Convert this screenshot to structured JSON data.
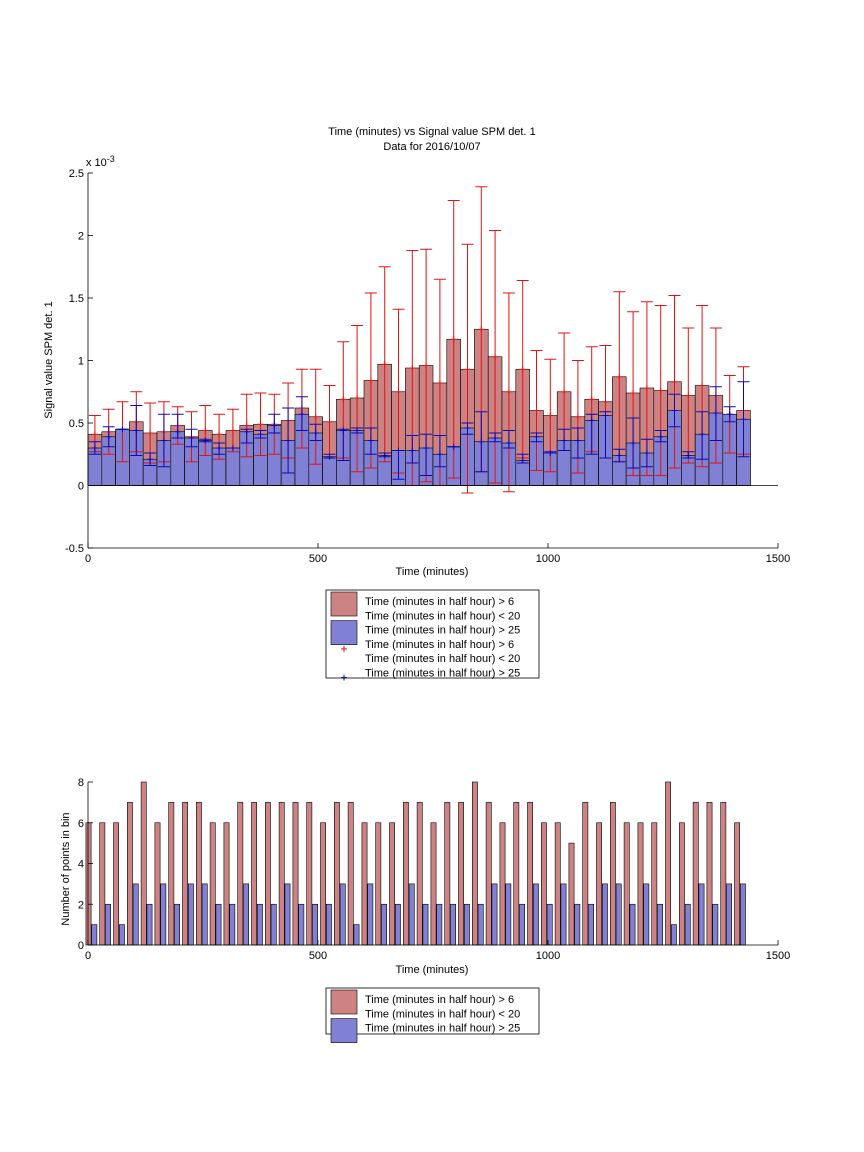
{
  "colors": {
    "red_face": "#cd8383",
    "red_edge": "#b31c1c",
    "blue_face": "#8080d4",
    "blue_edge": "#1c1c99",
    "err_red": "#e01414",
    "err_blue": "#0a0ab4"
  },
  "chart_data": [
    {
      "type": "bar",
      "title": "Time (minutes) vs Signal value SPM det. 1",
      "subtitle": "Data for 2016/10/07",
      "xlabel": "Time (minutes)",
      "ylabel": "Signal value SPM det. 1",
      "y_exponent_label": "x 10",
      "y_exponent_value": "-3",
      "xlim": [
        0,
        1500
      ],
      "ylim": [
        -0.5,
        2.5
      ],
      "y_scale": 0.001,
      "x_ticks": [
        "0",
        "500",
        "1000",
        "1500"
      ],
      "y_ticks": [
        "-0.5",
        "0",
        "0.5",
        "1",
        "1.5",
        "2",
        "2.5"
      ],
      "legend": [
        {
          "label": "Time (minutes in half hour) > 6",
          "kind": "bar",
          "series": "red"
        },
        {
          "label": "Time (minutes in half hour) < 20",
          "kind": "text"
        },
        {
          "label": "Time (minutes in half hour) > 25",
          "kind": "bar",
          "series": "blue"
        },
        {
          "label": "Time (minutes in half hour) > 6",
          "kind": "errorbar",
          "series": "red"
        },
        {
          "label": "Time (minutes in half hour) < 20",
          "kind": "text"
        },
        {
          "label": "Time (minutes in half hour) > 25",
          "kind": "errorbar",
          "series": "blue"
        }
      ],
      "x": [
        15,
        45,
        75,
        105,
        135,
        165,
        195,
        225,
        255,
        285,
        315,
        345,
        375,
        405,
        435,
        465,
        495,
        525,
        555,
        585,
        615,
        645,
        675,
        705,
        735,
        765,
        795,
        825,
        855,
        885,
        915,
        945,
        975,
        1005,
        1035,
        1065,
        1095,
        1125,
        1155,
        1185,
        1215,
        1245,
        1275,
        1305,
        1335,
        1365,
        1395,
        1425
      ],
      "series": [
        {
          "name": "Time (minutes in half hour) > 6",
          "values": [
            0.41,
            0.43,
            0.45,
            0.51,
            0.42,
            0.43,
            0.48,
            0.39,
            0.44,
            0.41,
            0.44,
            0.48,
            0.49,
            0.49,
            0.52,
            0.62,
            0.55,
            0.51,
            0.69,
            0.7,
            0.84,
            0.97,
            0.75,
            0.94,
            0.96,
            0.82,
            1.17,
            0.93,
            1.25,
            1.03,
            0.75,
            0.93,
            0.6,
            0.56,
            0.75,
            0.55,
            0.69,
            0.67,
            0.87,
            0.74,
            0.78,
            0.76,
            0.83,
            0.72,
            0.8,
            0.72,
            0.57,
            0.6
          ],
          "err_low": [
            0.27,
            0.25,
            0.19,
            0.27,
            0.18,
            0.19,
            0.33,
            0.19,
            0.24,
            0.21,
            0.27,
            0.23,
            0.24,
            0.25,
            0.22,
            0.3,
            0.17,
            0.22,
            0.22,
            0.11,
            0.14,
            0.19,
            0.1,
            0.0,
            0.03,
            0.0,
            0.06,
            -0.06,
            0.11,
            0.02,
            -0.05,
            0.22,
            0.12,
            0.11,
            0.28,
            0.1,
            0.27,
            0.22,
            0.19,
            0.08,
            0.08,
            0.08,
            0.14,
            0.18,
            0.15,
            0.18,
            0.26,
            0.25
          ],
          "err_high": [
            0.56,
            0.61,
            0.67,
            0.75,
            0.66,
            0.67,
            0.63,
            0.59,
            0.64,
            0.57,
            0.61,
            0.73,
            0.74,
            0.73,
            0.82,
            0.93,
            0.93,
            0.8,
            1.15,
            1.28,
            1.54,
            1.75,
            1.41,
            1.88,
            1.89,
            1.65,
            2.28,
            1.93,
            2.39,
            2.04,
            1.54,
            1.64,
            1.08,
            1.01,
            1.22,
            1.0,
            1.11,
            1.12,
            1.55,
            1.39,
            1.47,
            1.44,
            1.52,
            1.26,
            1.44,
            1.26,
            0.88,
            0.95
          ]
        },
        {
          "name": "Time (minutes in half hour) > 25",
          "values": [
            0.3,
            0.39,
            0.45,
            0.44,
            0.21,
            0.36,
            0.43,
            0.38,
            0.36,
            0.3,
            0.3,
            0.43,
            0.41,
            0.48,
            0.36,
            0.57,
            0.42,
            0.23,
            0.44,
            0.44,
            0.36,
            0.24,
            0.28,
            0.28,
            0.3,
            0.25,
            0.31,
            0.46,
            0.35,
            0.38,
            0.34,
            0.2,
            0.39,
            0.26,
            0.36,
            0.36,
            0.52,
            0.56,
            0.24,
            0.34,
            0.26,
            0.39,
            0.6,
            0.24,
            0.41,
            0.58,
            0.57,
            0.53
          ],
          "err_low": [
            0.25,
            0.31,
            0.45,
            0.24,
            0.16,
            0.15,
            0.38,
            0.31,
            0.35,
            0.25,
            0.3,
            0.34,
            0.38,
            0.42,
            0.1,
            0.44,
            0.36,
            0.22,
            0.2,
            0.42,
            0.25,
            0.23,
            0.05,
            0.18,
            0.08,
            0.15,
            0.31,
            0.41,
            0.11,
            0.35,
            0.3,
            0.18,
            0.35,
            0.26,
            0.28,
            0.22,
            0.25,
            0.22,
            0.19,
            0.14,
            0.15,
            0.35,
            0.47,
            0.22,
            0.21,
            0.36,
            0.51,
            0.23
          ],
          "err_high": [
            0.35,
            0.47,
            0.45,
            0.64,
            0.26,
            0.57,
            0.57,
            0.45,
            0.37,
            0.34,
            0.3,
            0.45,
            0.44,
            0.57,
            0.62,
            0.71,
            0.49,
            0.25,
            0.45,
            0.46,
            0.46,
            0.26,
            0.28,
            0.4,
            0.41,
            0.4,
            0.31,
            0.5,
            0.59,
            0.42,
            0.44,
            0.25,
            0.42,
            0.27,
            0.45,
            0.46,
            0.57,
            0.59,
            0.29,
            0.54,
            0.37,
            0.44,
            0.73,
            0.27,
            0.59,
            0.79,
            0.63,
            0.83
          ]
        }
      ]
    },
    {
      "type": "bar",
      "xlabel": "Time (minutes)",
      "ylabel": "Number of points in bin",
      "xlim": [
        0,
        1500
      ],
      "ylim": [
        0,
        8
      ],
      "x_ticks": [
        "0",
        "500",
        "1000",
        "1500"
      ],
      "y_ticks": [
        "0",
        "2",
        "4",
        "6",
        "8"
      ],
      "legend": [
        {
          "label": "Time (minutes in half hour) > 6",
          "kind": "bar",
          "series": "red"
        },
        {
          "label": "Time (minutes in half hour) < 20",
          "kind": "text"
        },
        {
          "label": "Time (minutes in half hour) > 25",
          "kind": "bar",
          "series": "blue"
        }
      ],
      "x": [
        15,
        45,
        75,
        105,
        135,
        165,
        195,
        225,
        255,
        285,
        315,
        345,
        375,
        405,
        435,
        465,
        495,
        525,
        555,
        585,
        615,
        645,
        675,
        705,
        735,
        765,
        795,
        825,
        855,
        885,
        915,
        945,
        975,
        1005,
        1035,
        1065,
        1095,
        1125,
        1155,
        1185,
        1215,
        1245,
        1275,
        1305,
        1335,
        1365,
        1395,
        1425
      ],
      "series": [
        {
          "name": "Time (minutes in half hour) > 6",
          "values": [
            6,
            6,
            6,
            7,
            8,
            6,
            7,
            7,
            7,
            6,
            6,
            7,
            7,
            7,
            7,
            7,
            7,
            6,
            7,
            7,
            6,
            6,
            6,
            7,
            7,
            6,
            7,
            7,
            8,
            7,
            6,
            7,
            7,
            6,
            6,
            5,
            7,
            6,
            7,
            6,
            6,
            6,
            8,
            6,
            7,
            7,
            7,
            6
          ]
        },
        {
          "name": "Time (minutes in half hour) > 25",
          "values": [
            1,
            2,
            1,
            3,
            2,
            3,
            2,
            3,
            3,
            2,
            2,
            3,
            2,
            2,
            3,
            2,
            2,
            2,
            3,
            1,
            3,
            2,
            2,
            3,
            2,
            2,
            2,
            2,
            2,
            3,
            3,
            2,
            3,
            2,
            3,
            2,
            2,
            3,
            3,
            2,
            3,
            2,
            1,
            2,
            3,
            2,
            3,
            3
          ]
        }
      ]
    }
  ]
}
